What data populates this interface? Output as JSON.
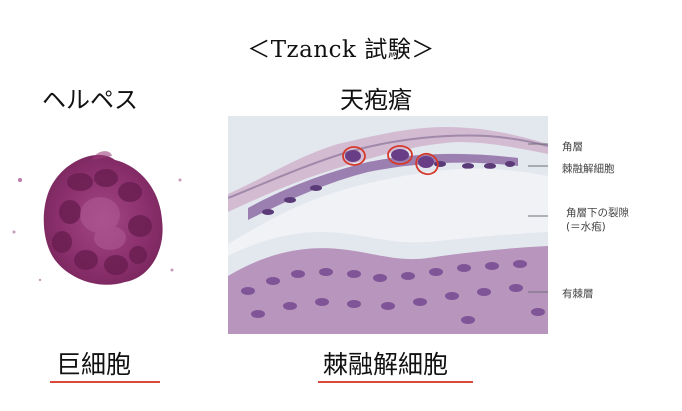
{
  "title": "＜Tzanck 試験＞",
  "left": {
    "heading": "ヘルペス",
    "caption": "巨細胞"
  },
  "right": {
    "heading": "天疱瘡",
    "caption": "棘融解細胞",
    "annotations": {
      "horny_layer": "角層",
      "acantholytic_cell": "棘融解細胞",
      "cleft_line1": "角層下の裂隙",
      "cleft_line2": "(＝水疱)",
      "spinous_layer": "有棘層"
    }
  },
  "colors": {
    "underline": "#d94a3d",
    "stain": "#8b2a6e",
    "circle": "#d63a2c"
  }
}
